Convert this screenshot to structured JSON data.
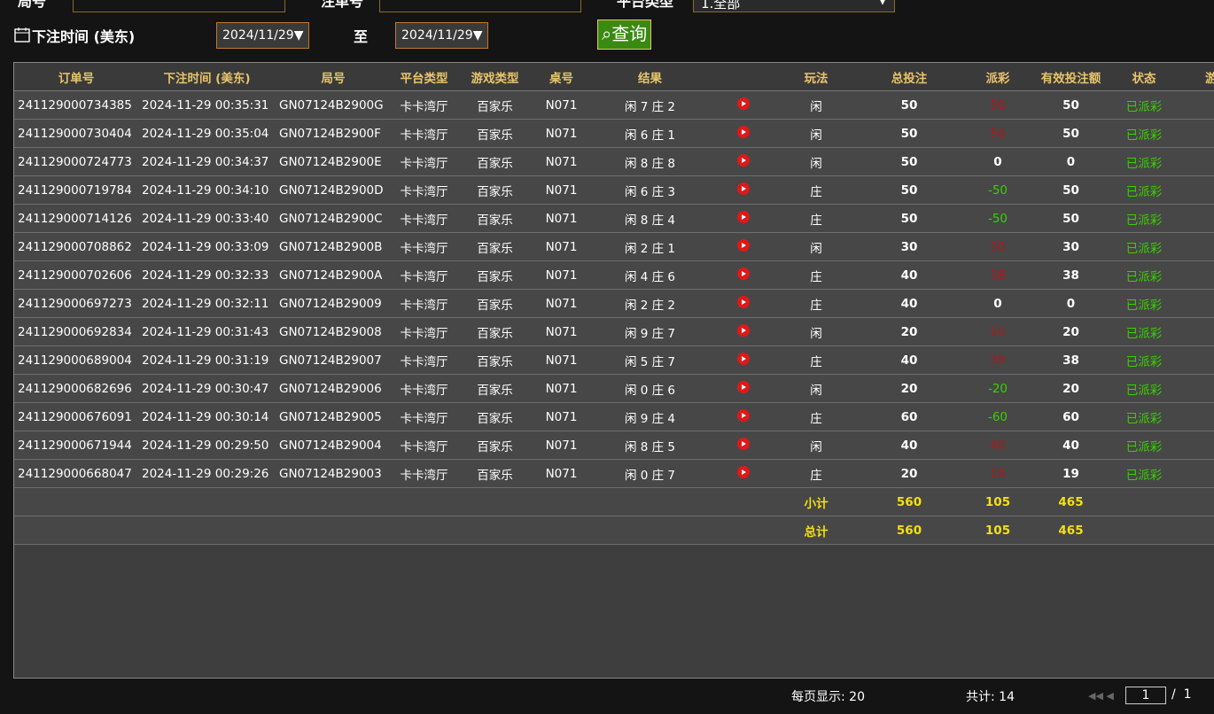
{
  "filters": {
    "round_label": "局号",
    "order_label": "注单号",
    "platform_label": "平台类型",
    "platform_value": "1.全部",
    "time_label": "下注时间 (美东)",
    "date_from": "2024/11/29",
    "to_label": "至",
    "date_to": "2024/11/29",
    "query_button": "查询"
  },
  "table": {
    "columns": [
      "订单号",
      "下注时间 (美东)",
      "局号",
      "平台类型",
      "游戏类型",
      "桌号",
      "结果",
      "玩法",
      "总投注",
      "派彩",
      "有效投注额",
      "状态",
      "游戏"
    ],
    "rows": [
      [
        "241129000734385",
        "2024-11-29 00:35:31",
        "GN07124B2900G",
        "卡卡湾厅",
        "百家乐",
        "N071",
        "闲 7 庄 2",
        "闲",
        50,
        50,
        50,
        "已派彩"
      ],
      [
        "241129000730404",
        "2024-11-29 00:35:04",
        "GN07124B2900F",
        "卡卡湾厅",
        "百家乐",
        "N071",
        "闲 6 庄 1",
        "闲",
        50,
        50,
        50,
        "已派彩"
      ],
      [
        "241129000724773",
        "2024-11-29 00:34:37",
        "GN07124B2900E",
        "卡卡湾厅",
        "百家乐",
        "N071",
        "闲 8 庄 8",
        "闲",
        50,
        0,
        0,
        "已派彩"
      ],
      [
        "241129000719784",
        "2024-11-29 00:34:10",
        "GN07124B2900D",
        "卡卡湾厅",
        "百家乐",
        "N071",
        "闲 6 庄 3",
        "庄",
        50,
        -50,
        50,
        "已派彩"
      ],
      [
        "241129000714126",
        "2024-11-29 00:33:40",
        "GN07124B2900C",
        "卡卡湾厅",
        "百家乐",
        "N071",
        "闲 8 庄 4",
        "庄",
        50,
        -50,
        50,
        "已派彩"
      ],
      [
        "241129000708862",
        "2024-11-29 00:33:09",
        "GN07124B2900B",
        "卡卡湾厅",
        "百家乐",
        "N071",
        "闲 2 庄 1",
        "闲",
        30,
        30,
        30,
        "已派彩"
      ],
      [
        "241129000702606",
        "2024-11-29 00:32:33",
        "GN07124B2900A",
        "卡卡湾厅",
        "百家乐",
        "N071",
        "闲 4 庄 6",
        "庄",
        40,
        38,
        38,
        "已派彩"
      ],
      [
        "241129000697273",
        "2024-11-29 00:32:11",
        "GN07124B29009",
        "卡卡湾厅",
        "百家乐",
        "N071",
        "闲 2 庄 2",
        "庄",
        40,
        0,
        0,
        "已派彩"
      ],
      [
        "241129000692834",
        "2024-11-29 00:31:43",
        "GN07124B29008",
        "卡卡湾厅",
        "百家乐",
        "N071",
        "闲 9 庄 7",
        "闲",
        20,
        20,
        20,
        "已派彩"
      ],
      [
        "241129000689004",
        "2024-11-29 00:31:19",
        "GN07124B29007",
        "卡卡湾厅",
        "百家乐",
        "N071",
        "闲 5 庄 7",
        "庄",
        40,
        38,
        38,
        "已派彩"
      ],
      [
        "241129000682696",
        "2024-11-29 00:30:47",
        "GN07124B29006",
        "卡卡湾厅",
        "百家乐",
        "N071",
        "闲 0 庄 6",
        "闲",
        20,
        -20,
        20,
        "已派彩"
      ],
      [
        "241129000676091",
        "2024-11-29 00:30:14",
        "GN07124B29005",
        "卡卡湾厅",
        "百家乐",
        "N071",
        "闲 9 庄 4",
        "庄",
        60,
        -60,
        60,
        "已派彩"
      ],
      [
        "241129000671944",
        "2024-11-29 00:29:50",
        "GN07124B29004",
        "卡卡湾厅",
        "百家乐",
        "N071",
        "闲 8 庄 5",
        "闲",
        40,
        40,
        40,
        "已派彩"
      ],
      [
        "241129000668047",
        "2024-11-29 00:29:26",
        "GN07124B29003",
        "卡卡湾厅",
        "百家乐",
        "N071",
        "闲 0 庄 7",
        "庄",
        20,
        19,
        19,
        "已派彩"
      ]
    ],
    "summary": [
      {
        "label": "小计",
        "total_bet": 560,
        "payout": 105,
        "valid_bet": 465
      },
      {
        "label": "总计",
        "total_bet": 560,
        "payout": 105,
        "valid_bet": 465
      }
    ]
  },
  "footer": {
    "per_page_label": "每页显示:",
    "per_page": 20,
    "total_label": "共计:",
    "total": 14,
    "page": 1,
    "pages_label": "/",
    "pages": 1
  }
}
